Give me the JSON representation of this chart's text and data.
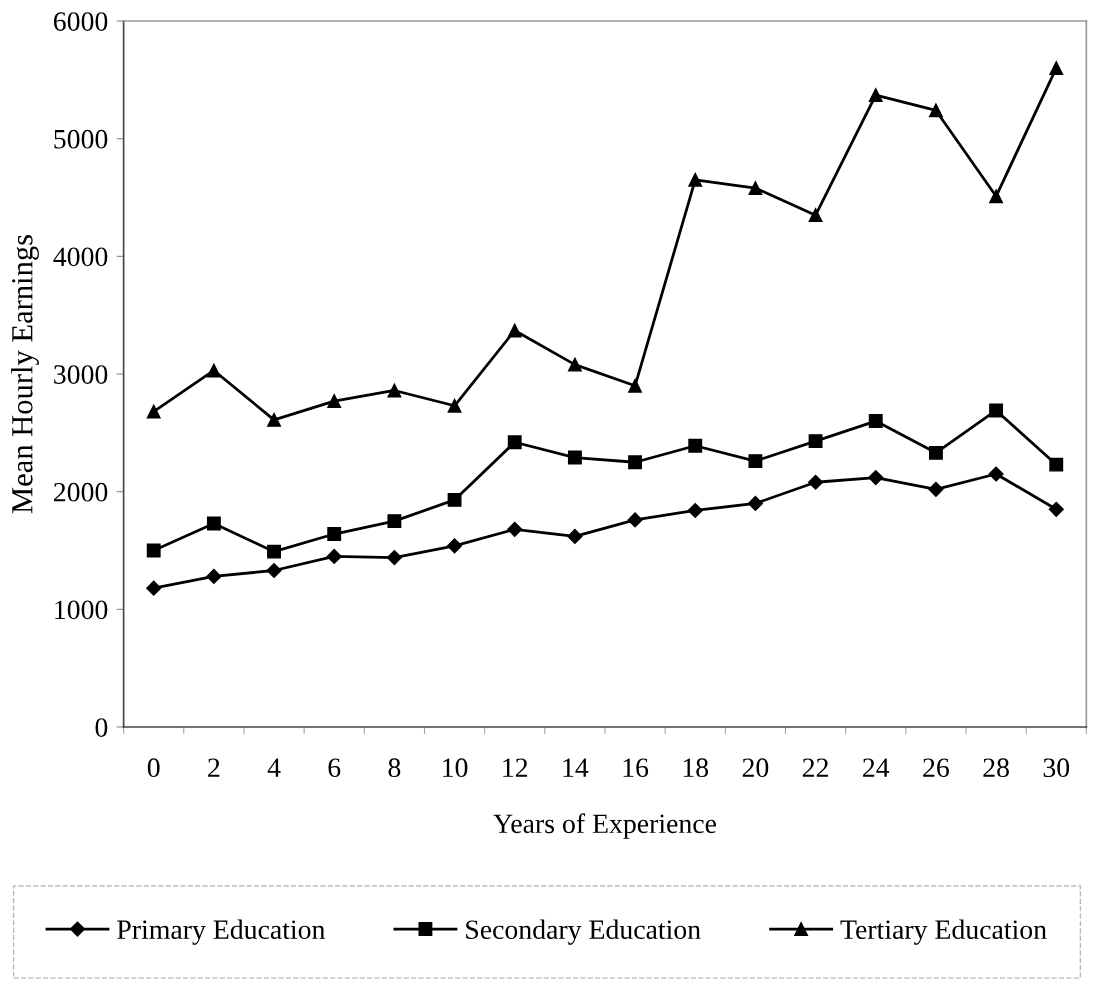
{
  "chart_data": {
    "type": "line",
    "xlabel": "Years of Experience",
    "ylabel": "Mean Hourly Earnings",
    "categories": [
      "0",
      "2",
      "4",
      "6",
      "8",
      "10",
      "12",
      "14",
      "16",
      "18",
      "20",
      "22",
      "24",
      "26",
      "28",
      "30"
    ],
    "series": [
      {
        "name": "Primary Education",
        "color": "#000000",
        "marker": "diamond",
        "values": [
          1180,
          1280,
          1330,
          1450,
          1440,
          1540,
          1680,
          1620,
          1760,
          1840,
          1900,
          2080,
          2120,
          2020,
          2150,
          1850
        ]
      },
      {
        "name": "Secondary Education",
        "color": "#000000",
        "marker": "square",
        "values": [
          1500,
          1730,
          1490,
          1640,
          1750,
          1930,
          2420,
          2290,
          2250,
          2390,
          2260,
          2430,
          2600,
          2330,
          2690,
          2230
        ]
      },
      {
        "name": "Tertiary Education",
        "color": "#000000",
        "marker": "triangle",
        "values": [
          2680,
          3030,
          2610,
          2770,
          2860,
          2730,
          3370,
          3080,
          2900,
          4650,
          4580,
          4350,
          5370,
          5240,
          4510,
          5600
        ]
      }
    ],
    "ylim": [
      0,
      6000
    ],
    "yticks": [
      0,
      1000,
      2000,
      3000,
      4000,
      5000,
      6000
    ],
    "grid": false,
    "legend": "bottom",
    "line_style": "solid"
  }
}
